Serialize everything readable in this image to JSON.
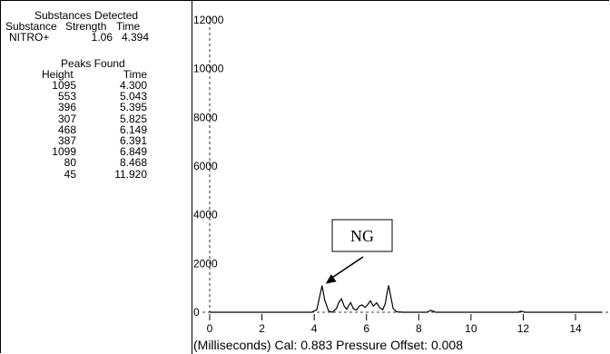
{
  "substances": {
    "title": "Substances Detected",
    "headers": [
      "Substance",
      "Strength",
      "Time"
    ],
    "rows": [
      {
        "substance": "NITRO+",
        "strength": "1.06",
        "time": "4.394"
      }
    ]
  },
  "peaks": {
    "title": "Peaks Found",
    "headers": [
      "Height",
      "Time"
    ],
    "rows": [
      {
        "height": "1095",
        "time": "4.300"
      },
      {
        "height": "553",
        "time": "5.043"
      },
      {
        "height": "396",
        "time": "5.395"
      },
      {
        "height": "307",
        "time": "5.825"
      },
      {
        "height": "468",
        "time": "6.149"
      },
      {
        "height": "387",
        "time": "6.391"
      },
      {
        "height": "1099",
        "time": "6.849"
      },
      {
        "height": "80",
        "time": "8.468"
      },
      {
        "height": "45",
        "time": "11.920"
      }
    ]
  },
  "footer": "(Milliseconds) Cal: 0.883  Pressure Offset: 0.008",
  "chart_data": {
    "type": "line",
    "title": "",
    "xlabel": "(Milliseconds)",
    "ylabel": "",
    "xlim": [
      0,
      15
    ],
    "ylim": [
      0,
      12000
    ],
    "xticks": [
      0,
      2,
      4,
      6,
      8,
      10,
      12,
      14
    ],
    "yticks": [
      0,
      2000,
      4000,
      6000,
      8000,
      10000,
      12000
    ],
    "series": [
      {
        "x": [
          0,
          3.9,
          4.1,
          4.2,
          4.3,
          4.4,
          4.55,
          4.7,
          4.85,
          4.95,
          5.043,
          5.15,
          5.25,
          5.32,
          5.395,
          5.5,
          5.62,
          5.72,
          5.825,
          5.95,
          6.05,
          6.149,
          6.26,
          6.391,
          6.5,
          6.62,
          6.72,
          6.8,
          6.849,
          6.92,
          7.02,
          7.15,
          7.4,
          8.3,
          8.468,
          8.65,
          11.8,
          11.92,
          12.05,
          15
        ],
        "y": [
          0,
          0,
          100,
          600,
          1095,
          500,
          50,
          0,
          150,
          420,
          553,
          250,
          120,
          280,
          396,
          150,
          90,
          250,
          307,
          200,
          320,
          468,
          250,
          387,
          200,
          100,
          350,
          850,
          1099,
          700,
          150,
          20,
          0,
          0,
          80,
          0,
          0,
          45,
          0,
          0
        ]
      }
    ],
    "annotations": [
      {
        "label": "NG",
        "x": 4.3,
        "y": 1095
      }
    ]
  }
}
